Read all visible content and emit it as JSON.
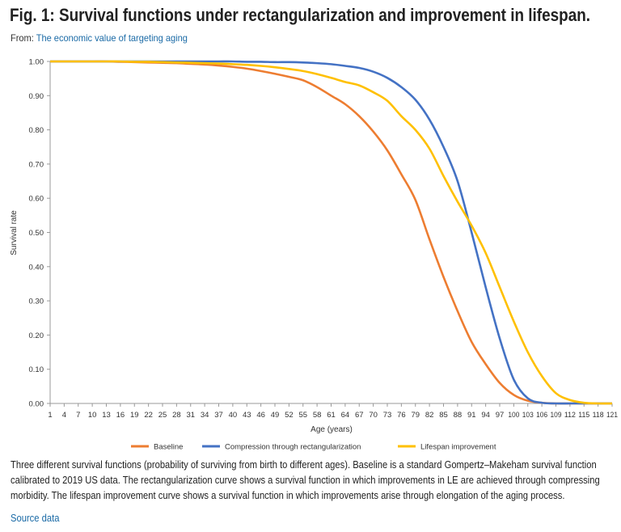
{
  "header": {
    "title": "Fig. 1: Survival functions under rectangularization and improvement in lifespan.",
    "from_label": "From:",
    "from_link": "The economic value of targeting aging"
  },
  "caption": "Three different survival functions (probability of surviving from birth to different ages). Baseline is a standard Gompertz–Makeham survival function calibrated to 2019 US data. The rectangularization curve shows a survival function in which improvements in LE are achieved through compressing morbidity. The lifespan improvement curve shows a survival function in which improvements arise through elongation of the aging process.",
  "source_link": "Source data",
  "chart_data": {
    "type": "line",
    "xlabel": "Age (years)",
    "ylabel": "Survival rate",
    "ylim": [
      0,
      1
    ],
    "xlim": [
      1,
      121
    ],
    "yticks": [
      "0.00",
      "0.10",
      "0.20",
      "0.30",
      "0.40",
      "0.50",
      "0.60",
      "0.70",
      "0.80",
      "0.90",
      "1.00"
    ],
    "grid": false,
    "legend": "bottom",
    "x": [
      1,
      4,
      7,
      10,
      13,
      16,
      19,
      22,
      25,
      28,
      31,
      34,
      37,
      40,
      43,
      46,
      49,
      52,
      55,
      58,
      61,
      64,
      67,
      70,
      73,
      76,
      79,
      82,
      85,
      88,
      91,
      94,
      97,
      100,
      103,
      106,
      109,
      112,
      115,
      118,
      121
    ],
    "series": [
      {
        "name": "Baseline",
        "color": "#ED7D31",
        "values": [
          1,
          1,
          1,
          1,
          1,
          0.999,
          0.998,
          0.997,
          0.996,
          0.995,
          0.993,
          0.991,
          0.988,
          0.984,
          0.979,
          0.972,
          0.964,
          0.955,
          0.945,
          0.925,
          0.9,
          0.875,
          0.84,
          0.795,
          0.74,
          0.67,
          0.595,
          0.48,
          0.37,
          0.27,
          0.18,
          0.115,
          0.06,
          0.025,
          0.008,
          0.002,
          0,
          0,
          0,
          0,
          0
        ]
      },
      {
        "name": "Compression through rectangularization",
        "color": "#4472C4",
        "values": [
          1,
          1,
          1,
          1,
          1,
          1,
          1,
          1,
          1,
          1,
          1,
          1,
          1,
          1,
          0.999,
          0.999,
          0.998,
          0.998,
          0.997,
          0.995,
          0.992,
          0.987,
          0.981,
          0.97,
          0.952,
          0.925,
          0.888,
          0.83,
          0.75,
          0.65,
          0.5,
          0.34,
          0.19,
          0.07,
          0.015,
          0.002,
          0,
          0,
          0,
          0,
          0
        ]
      },
      {
        "name": "Lifespan improvement",
        "color": "#FFC000",
        "values": [
          1,
          1,
          1,
          1,
          1,
          1,
          0.999,
          0.999,
          0.998,
          0.997,
          0.996,
          0.995,
          0.994,
          0.992,
          0.99,
          0.987,
          0.983,
          0.978,
          0.972,
          0.963,
          0.952,
          0.94,
          0.93,
          0.91,
          0.885,
          0.84,
          0.8,
          0.745,
          0.665,
          0.59,
          0.52,
          0.44,
          0.34,
          0.24,
          0.15,
          0.08,
          0.03,
          0.01,
          0.002,
          0,
          0
        ]
      }
    ]
  }
}
